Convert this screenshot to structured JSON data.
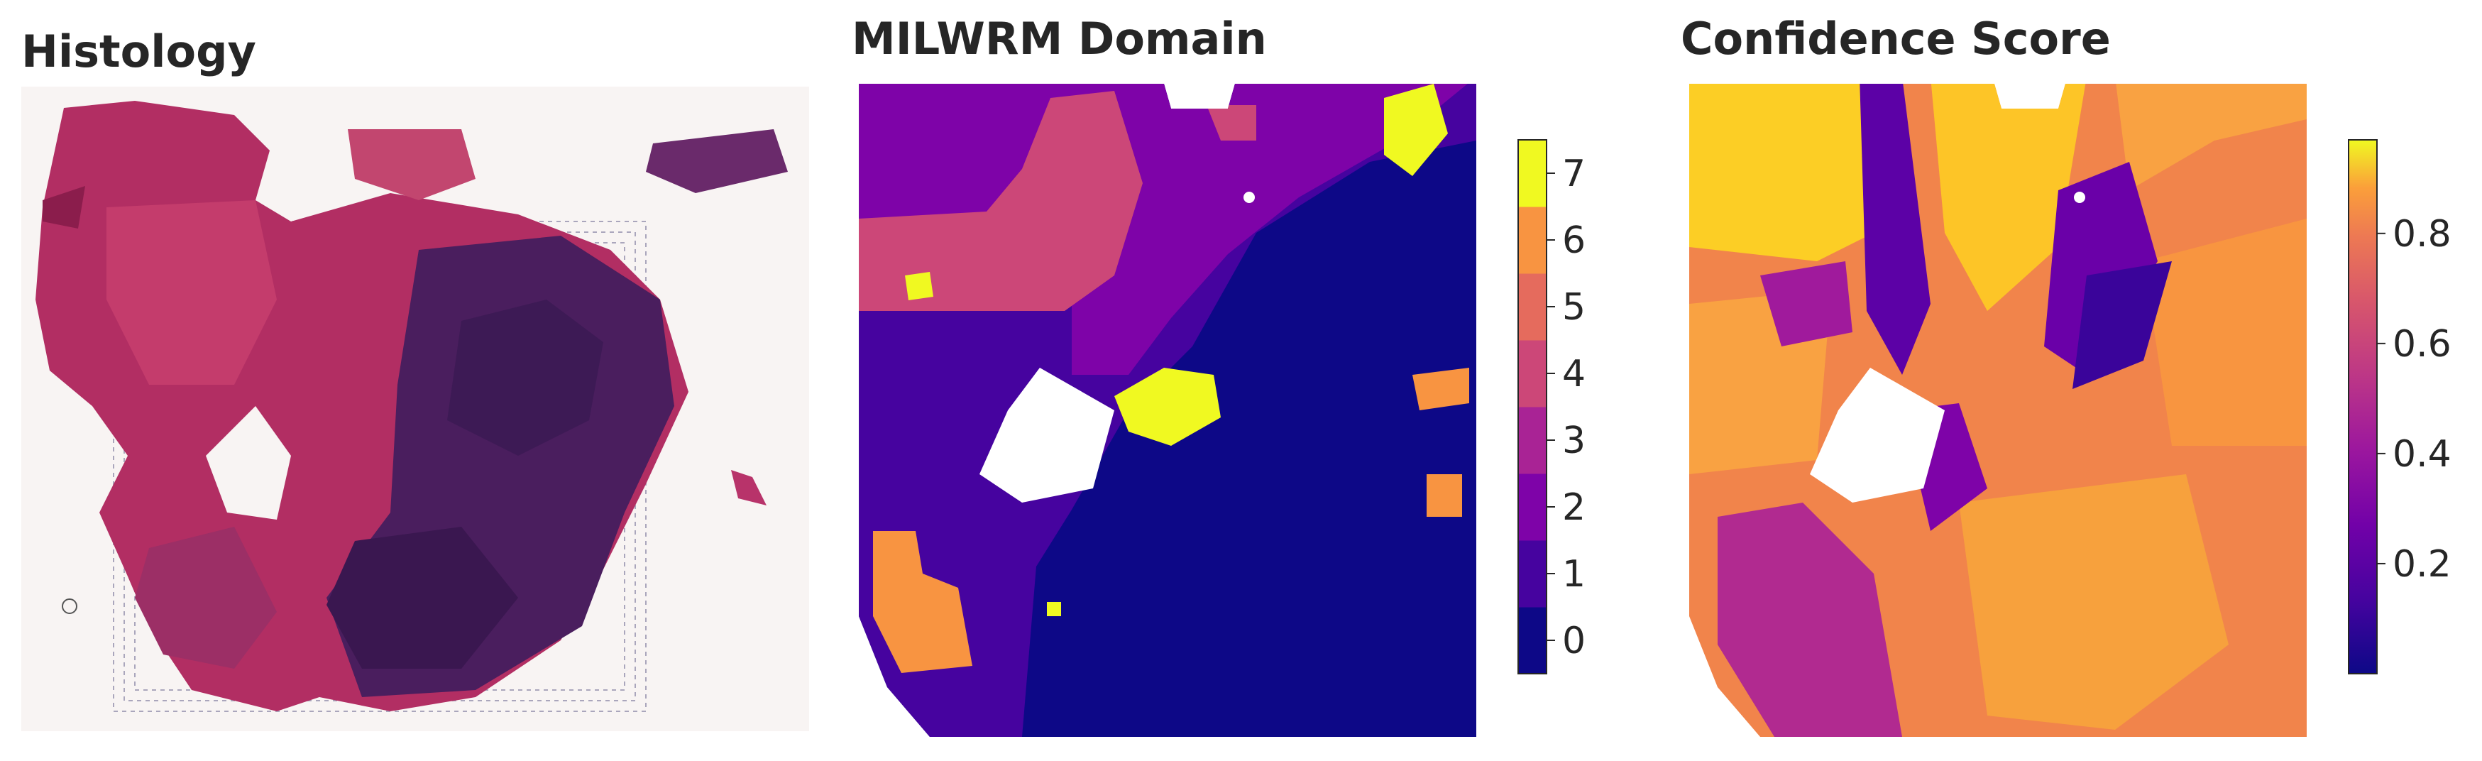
{
  "panels": [
    {
      "title": "Histology"
    },
    {
      "title": "MILWRM Domain"
    },
    {
      "title": "Confidence Score"
    }
  ],
  "chart_data": [
    {
      "type": "other",
      "title": "Histology",
      "description_kind": "H&E tissue image"
    },
    {
      "type": "heatmap",
      "title": "MILWRM Domain",
      "colorbar": {
        "kind": "discrete",
        "ticks": [
          0,
          1,
          2,
          3,
          4,
          5,
          6,
          7
        ],
        "colors": [
          "#0d0887",
          "#46039f",
          "#7e03a8",
          "#a92395",
          "#cc4778",
          "#e56b5d",
          "#f89441",
          "#f0f921"
        ],
        "vmin": -0.5,
        "vmax": 7.5
      }
    },
    {
      "type": "heatmap",
      "title": "Confidence Score",
      "colorbar": {
        "kind": "continuous",
        "colormap": "plasma",
        "ticks": [
          0.2,
          0.4,
          0.6,
          0.8
        ],
        "tick_labels": [
          "0.2",
          "0.4",
          "0.6",
          "0.8"
        ],
        "vmin": 0.0,
        "vmax": 0.97
      }
    }
  ]
}
